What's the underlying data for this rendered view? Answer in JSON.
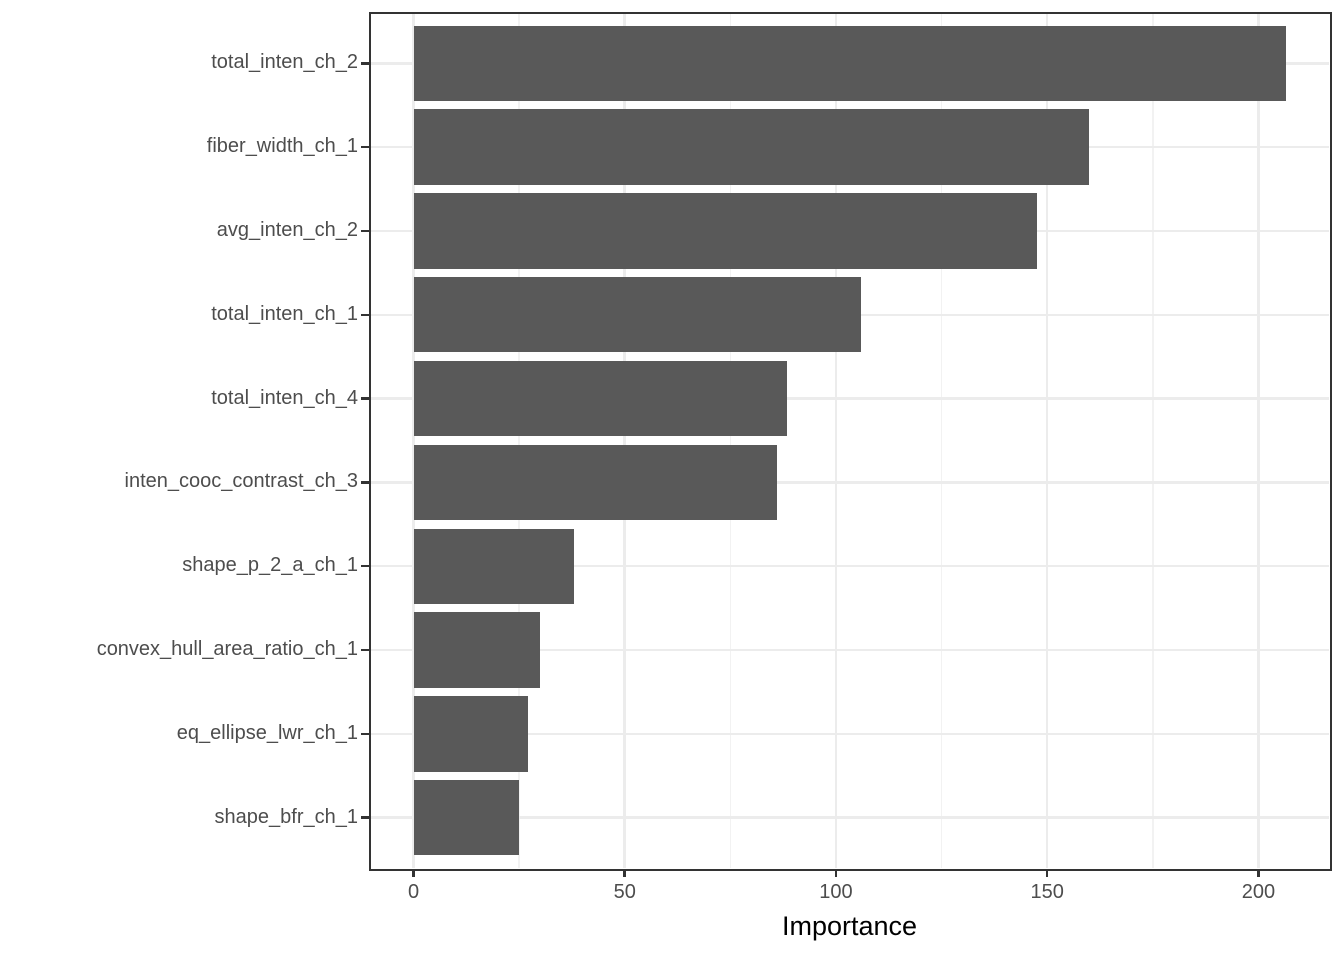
{
  "chart_data": {
    "type": "bar",
    "orientation": "horizontal",
    "title": "",
    "xlabel": "Importance",
    "ylabel": "",
    "categories": [
      "total_inten_ch_2",
      "fiber_width_ch_1",
      "avg_inten_ch_2",
      "total_inten_ch_1",
      "total_inten_ch_4",
      "inten_cooc_contrast_ch_3",
      "shape_p_2_a_ch_1",
      "convex_hull_area_ratio_ch_1",
      "eq_ellipse_lwr_ch_1",
      "shape_bfr_ch_1"
    ],
    "values": [
      206.5,
      160,
      147.5,
      106,
      88.5,
      86,
      38,
      30,
      27,
      25
    ],
    "xlim": [
      -10.3,
      216.7
    ],
    "x_major_ticks": [
      0,
      50,
      100,
      150,
      200
    ],
    "x_minor_ticks": [
      25,
      75,
      125,
      175
    ],
    "x_tick_labels": [
      "0",
      "50",
      "100",
      "150",
      "200"
    ],
    "grid": true,
    "legend_position": "none",
    "colors": {
      "bar": "#595959",
      "grid_major": "#ececec",
      "grid_minor": "#f2f2f2",
      "panel_border": "#333333",
      "tick_mark": "#333333",
      "tick_label": "#4d4d4d",
      "axis_title": "#000000",
      "background": "#ffffff"
    }
  }
}
